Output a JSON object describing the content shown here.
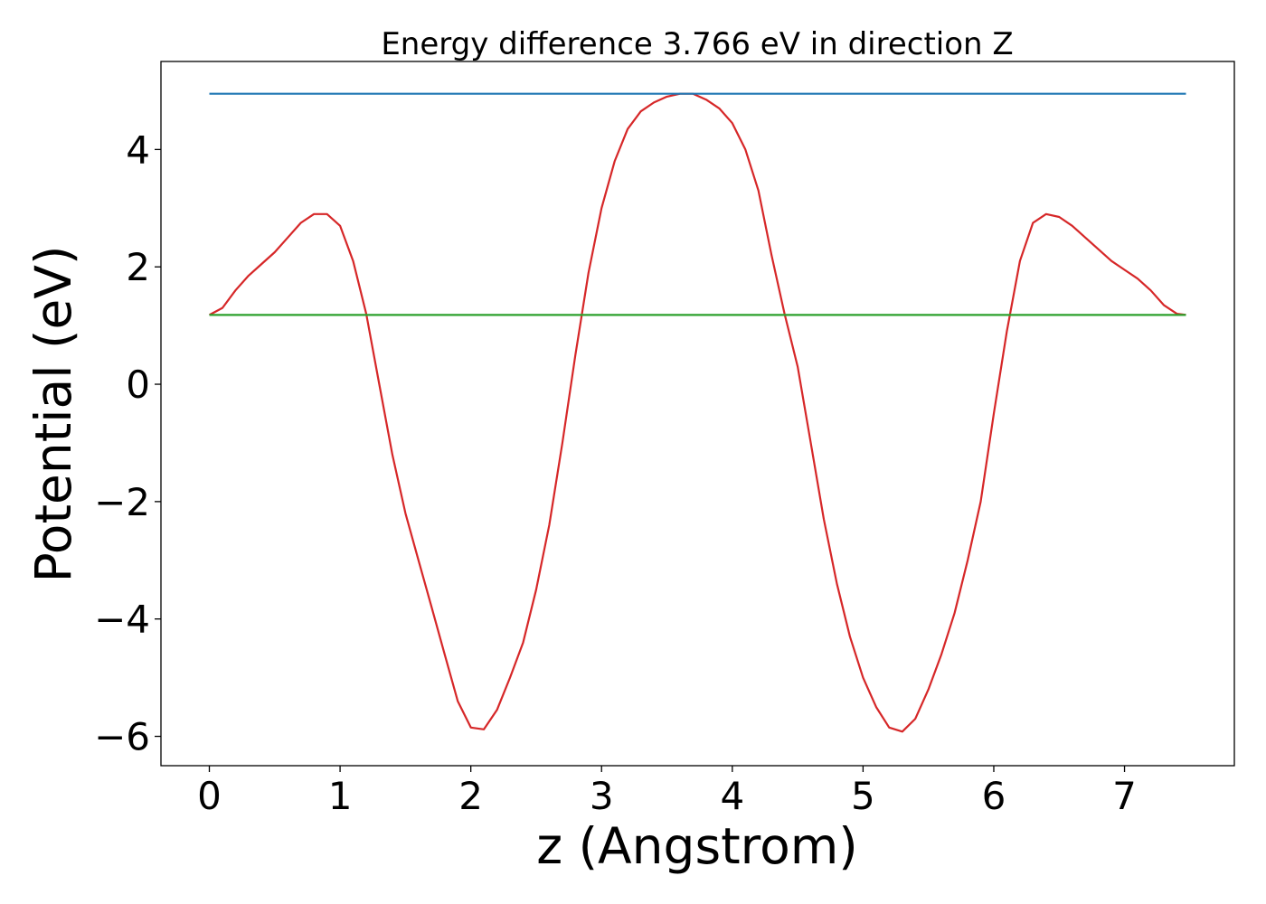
{
  "chart_data": {
    "type": "line",
    "title": "Energy difference 3.766 eV in direction Z",
    "xlabel": "z (Angstrom)",
    "ylabel": "Potential (eV)",
    "xlim": [
      -0.37,
      7.84
    ],
    "ylim": [
      -6.5,
      5.5
    ],
    "xticks": [
      0,
      1,
      2,
      3,
      4,
      5,
      6,
      7
    ],
    "xtick_labels": [
      "0",
      "1",
      "2",
      "3",
      "4",
      "5",
      "6",
      "7"
    ],
    "yticks": [
      -6,
      -4,
      -2,
      0,
      2,
      4
    ],
    "ytick_labels": [
      "−6",
      "−4",
      "−2",
      "0",
      "2",
      "4"
    ],
    "grid": false,
    "legend": "none",
    "series": [
      {
        "color": "#d62728",
        "x": [
          0,
          0.1,
          0.2,
          0.3,
          0.4,
          0.5,
          0.6,
          0.7,
          0.8,
          0.9,
          1.0,
          1.1,
          1.2,
          1.3,
          1.4,
          1.5,
          1.6,
          1.7,
          1.8,
          1.9,
          2.0,
          2.1,
          2.2,
          2.3,
          2.4,
          2.5,
          2.6,
          2.7,
          2.8,
          2.9,
          3.0,
          3.1,
          3.2,
          3.3,
          3.4,
          3.5,
          3.6,
          3.7,
          3.8,
          3.9,
          4.0,
          4.1,
          4.2,
          4.3,
          4.4,
          4.5,
          4.6,
          4.7,
          4.8,
          4.9,
          5.0,
          5.1,
          5.2,
          5.3,
          5.4,
          5.5,
          5.6,
          5.7,
          5.8,
          5.9,
          6.0,
          6.1,
          6.2,
          6.3,
          6.4,
          6.5,
          6.6,
          6.7,
          6.8,
          6.9,
          7.0,
          7.1,
          7.2,
          7.3,
          7.4,
          7.47
        ],
        "y": [
          1.18,
          1.3,
          1.6,
          1.85,
          2.05,
          2.25,
          2.5,
          2.75,
          2.9,
          2.9,
          2.7,
          2.1,
          1.2,
          0.0,
          -1.2,
          -2.2,
          -3.0,
          -3.8,
          -4.6,
          -5.4,
          -5.85,
          -5.88,
          -5.55,
          -5.0,
          -4.4,
          -3.5,
          -2.4,
          -1.0,
          0.5,
          1.9,
          3.0,
          3.8,
          4.35,
          4.65,
          4.8,
          4.9,
          4.95,
          4.95,
          4.85,
          4.7,
          4.45,
          4.0,
          3.3,
          2.2,
          1.2,
          0.3,
          -1.0,
          -2.3,
          -3.4,
          -4.3,
          -5.0,
          -5.5,
          -5.85,
          -5.92,
          -5.7,
          -5.2,
          -4.6,
          -3.9,
          -3.0,
          -2.0,
          -0.5,
          0.9,
          2.1,
          2.75,
          2.9,
          2.85,
          2.7,
          2.5,
          2.3,
          2.1,
          1.95,
          1.8,
          1.6,
          1.35,
          1.2,
          1.18
        ]
      },
      {
        "color": "#1f77b4",
        "x": [
          0,
          7.47
        ],
        "y": [
          4.95,
          4.95
        ]
      },
      {
        "color": "#2ca02c",
        "x": [
          0,
          7.47
        ],
        "y": [
          1.18,
          1.18
        ]
      }
    ]
  }
}
